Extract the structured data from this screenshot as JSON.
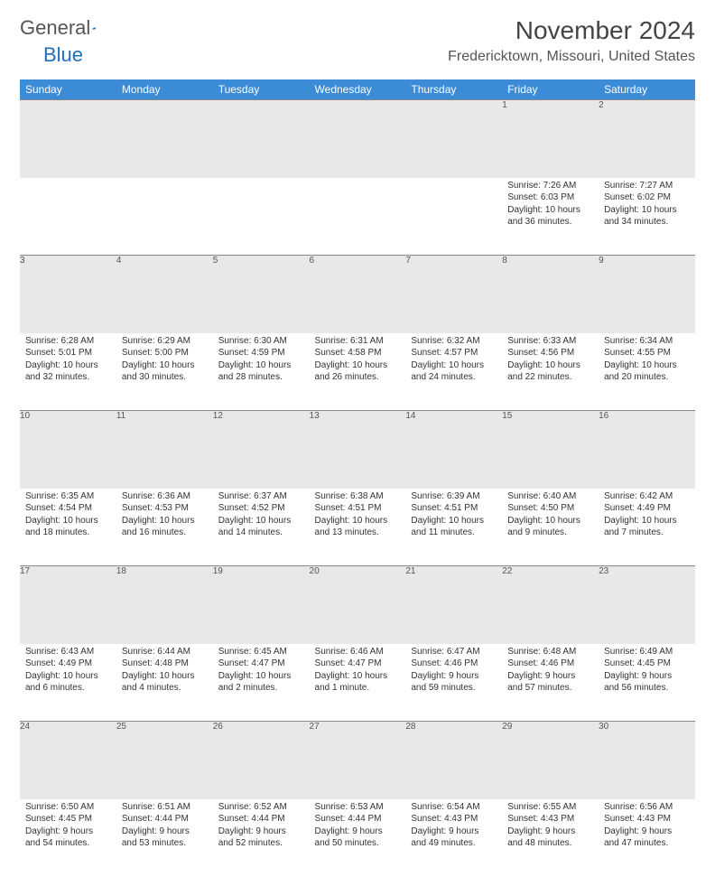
{
  "brand": {
    "name_gray": "General",
    "name_blue": "Blue"
  },
  "title": {
    "month": "November 2024",
    "location": "Fredericktown, Missouri, United States"
  },
  "colors": {
    "header": "#3b8bd6",
    "daynum_bg": "#e8e8e8",
    "rule": "#888888"
  },
  "weekdays": [
    "Sunday",
    "Monday",
    "Tuesday",
    "Wednesday",
    "Thursday",
    "Friday",
    "Saturday"
  ],
  "weeks": [
    [
      null,
      null,
      null,
      null,
      null,
      {
        "n": "1",
        "sr": "Sunrise: 7:26 AM",
        "ss": "Sunset: 6:03 PM",
        "d1": "Daylight: 10 hours",
        "d2": "and 36 minutes."
      },
      {
        "n": "2",
        "sr": "Sunrise: 7:27 AM",
        "ss": "Sunset: 6:02 PM",
        "d1": "Daylight: 10 hours",
        "d2": "and 34 minutes."
      }
    ],
    [
      {
        "n": "3",
        "sr": "Sunrise: 6:28 AM",
        "ss": "Sunset: 5:01 PM",
        "d1": "Daylight: 10 hours",
        "d2": "and 32 minutes."
      },
      {
        "n": "4",
        "sr": "Sunrise: 6:29 AM",
        "ss": "Sunset: 5:00 PM",
        "d1": "Daylight: 10 hours",
        "d2": "and 30 minutes."
      },
      {
        "n": "5",
        "sr": "Sunrise: 6:30 AM",
        "ss": "Sunset: 4:59 PM",
        "d1": "Daylight: 10 hours",
        "d2": "and 28 minutes."
      },
      {
        "n": "6",
        "sr": "Sunrise: 6:31 AM",
        "ss": "Sunset: 4:58 PM",
        "d1": "Daylight: 10 hours",
        "d2": "and 26 minutes."
      },
      {
        "n": "7",
        "sr": "Sunrise: 6:32 AM",
        "ss": "Sunset: 4:57 PM",
        "d1": "Daylight: 10 hours",
        "d2": "and 24 minutes."
      },
      {
        "n": "8",
        "sr": "Sunrise: 6:33 AM",
        "ss": "Sunset: 4:56 PM",
        "d1": "Daylight: 10 hours",
        "d2": "and 22 minutes."
      },
      {
        "n": "9",
        "sr": "Sunrise: 6:34 AM",
        "ss": "Sunset: 4:55 PM",
        "d1": "Daylight: 10 hours",
        "d2": "and 20 minutes."
      }
    ],
    [
      {
        "n": "10",
        "sr": "Sunrise: 6:35 AM",
        "ss": "Sunset: 4:54 PM",
        "d1": "Daylight: 10 hours",
        "d2": "and 18 minutes."
      },
      {
        "n": "11",
        "sr": "Sunrise: 6:36 AM",
        "ss": "Sunset: 4:53 PM",
        "d1": "Daylight: 10 hours",
        "d2": "and 16 minutes."
      },
      {
        "n": "12",
        "sr": "Sunrise: 6:37 AM",
        "ss": "Sunset: 4:52 PM",
        "d1": "Daylight: 10 hours",
        "d2": "and 14 minutes."
      },
      {
        "n": "13",
        "sr": "Sunrise: 6:38 AM",
        "ss": "Sunset: 4:51 PM",
        "d1": "Daylight: 10 hours",
        "d2": "and 13 minutes."
      },
      {
        "n": "14",
        "sr": "Sunrise: 6:39 AM",
        "ss": "Sunset: 4:51 PM",
        "d1": "Daylight: 10 hours",
        "d2": "and 11 minutes."
      },
      {
        "n": "15",
        "sr": "Sunrise: 6:40 AM",
        "ss": "Sunset: 4:50 PM",
        "d1": "Daylight: 10 hours",
        "d2": "and 9 minutes."
      },
      {
        "n": "16",
        "sr": "Sunrise: 6:42 AM",
        "ss": "Sunset: 4:49 PM",
        "d1": "Daylight: 10 hours",
        "d2": "and 7 minutes."
      }
    ],
    [
      {
        "n": "17",
        "sr": "Sunrise: 6:43 AM",
        "ss": "Sunset: 4:49 PM",
        "d1": "Daylight: 10 hours",
        "d2": "and 6 minutes."
      },
      {
        "n": "18",
        "sr": "Sunrise: 6:44 AM",
        "ss": "Sunset: 4:48 PM",
        "d1": "Daylight: 10 hours",
        "d2": "and 4 minutes."
      },
      {
        "n": "19",
        "sr": "Sunrise: 6:45 AM",
        "ss": "Sunset: 4:47 PM",
        "d1": "Daylight: 10 hours",
        "d2": "and 2 minutes."
      },
      {
        "n": "20",
        "sr": "Sunrise: 6:46 AM",
        "ss": "Sunset: 4:47 PM",
        "d1": "Daylight: 10 hours",
        "d2": "and 1 minute."
      },
      {
        "n": "21",
        "sr": "Sunrise: 6:47 AM",
        "ss": "Sunset: 4:46 PM",
        "d1": "Daylight: 9 hours",
        "d2": "and 59 minutes."
      },
      {
        "n": "22",
        "sr": "Sunrise: 6:48 AM",
        "ss": "Sunset: 4:46 PM",
        "d1": "Daylight: 9 hours",
        "d2": "and 57 minutes."
      },
      {
        "n": "23",
        "sr": "Sunrise: 6:49 AM",
        "ss": "Sunset: 4:45 PM",
        "d1": "Daylight: 9 hours",
        "d2": "and 56 minutes."
      }
    ],
    [
      {
        "n": "24",
        "sr": "Sunrise: 6:50 AM",
        "ss": "Sunset: 4:45 PM",
        "d1": "Daylight: 9 hours",
        "d2": "and 54 minutes."
      },
      {
        "n": "25",
        "sr": "Sunrise: 6:51 AM",
        "ss": "Sunset: 4:44 PM",
        "d1": "Daylight: 9 hours",
        "d2": "and 53 minutes."
      },
      {
        "n": "26",
        "sr": "Sunrise: 6:52 AM",
        "ss": "Sunset: 4:44 PM",
        "d1": "Daylight: 9 hours",
        "d2": "and 52 minutes."
      },
      {
        "n": "27",
        "sr": "Sunrise: 6:53 AM",
        "ss": "Sunset: 4:44 PM",
        "d1": "Daylight: 9 hours",
        "d2": "and 50 minutes."
      },
      {
        "n": "28",
        "sr": "Sunrise: 6:54 AM",
        "ss": "Sunset: 4:43 PM",
        "d1": "Daylight: 9 hours",
        "d2": "and 49 minutes."
      },
      {
        "n": "29",
        "sr": "Sunrise: 6:55 AM",
        "ss": "Sunset: 4:43 PM",
        "d1": "Daylight: 9 hours",
        "d2": "and 48 minutes."
      },
      {
        "n": "30",
        "sr": "Sunrise: 6:56 AM",
        "ss": "Sunset: 4:43 PM",
        "d1": "Daylight: 9 hours",
        "d2": "and 47 minutes."
      }
    ]
  ]
}
